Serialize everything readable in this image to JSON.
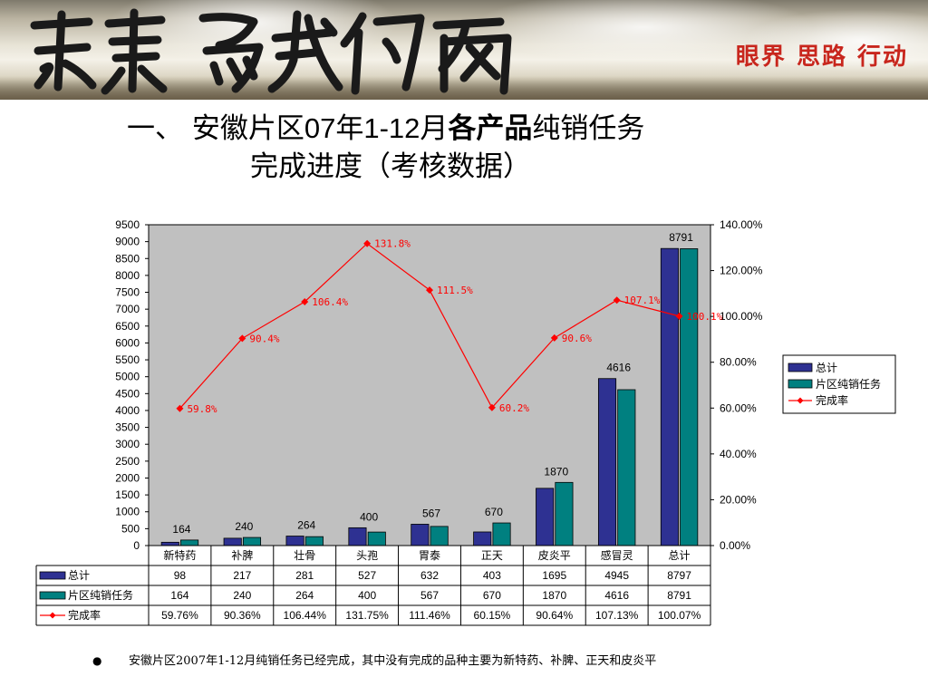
{
  "header": {
    "calligraphy": "未来属我们所来",
    "slogan": "眼界  思路  行动"
  },
  "title": {
    "line1_prefix": "一、 安徽片区",
    "line1_year": "07",
    "line1_year_unit": "年",
    "line1_range": "1-12",
    "line1_month": "月",
    "line1_bold": "各产品",
    "line1_suffix": "纯销任务",
    "line2": "完成进度（考核数据）"
  },
  "colors": {
    "series_total": "#2e3192",
    "series_task": "#008080",
    "rate_line": "#ff0000",
    "plot_bg": "#c0c0c0"
  },
  "chart_data": {
    "type": "bar",
    "categories": [
      "新特药",
      "补脾",
      "壮骨",
      "头孢",
      "胃泰",
      "正天",
      "皮炎平",
      "感冒灵",
      "总计"
    ],
    "series": [
      {
        "name": "总计",
        "values": [
          98,
          217,
          281,
          527,
          632,
          403,
          1695,
          4945,
          8797
        ]
      },
      {
        "name": "片区纯销任务",
        "values": [
          164,
          240,
          264,
          400,
          567,
          670,
          1870,
          4616,
          8791
        ]
      }
    ],
    "line_series": {
      "name": "完成率",
      "values": [
        59.8,
        90.4,
        106.4,
        131.8,
        111.5,
        60.2,
        90.6,
        107.1,
        100.1
      ],
      "labels": [
        "59.8%",
        "90.4%",
        "106.4%",
        "131.8%",
        "111.5%",
        "60.2%",
        "90.6%",
        "107.1%",
        "100.1%"
      ],
      "axis": "secondary"
    },
    "bar_labels": [
      "164",
      "240",
      "264",
      "400",
      "567",
      "670",
      "1870",
      "4616",
      "8791"
    ],
    "yaxis_left": {
      "ylim": [
        0,
        9500
      ],
      "ticks": [
        "0",
        "500",
        "1000",
        "1500",
        "2000",
        "2500",
        "3000",
        "3500",
        "4000",
        "4500",
        "5000",
        "5500",
        "6000",
        "6500",
        "7000",
        "7500",
        "8000",
        "8500",
        "9000",
        "9500"
      ]
    },
    "yaxis_right": {
      "ylim": [
        0,
        140
      ],
      "ticks": [
        "0.00%",
        "20.00%",
        "40.00%",
        "60.00%",
        "80.00%",
        "100.00%",
        "120.00%",
        "140.00%"
      ]
    },
    "legend": {
      "placement": "right",
      "entries": [
        "总计",
        "片区纯销任务",
        "完成率"
      ]
    },
    "data_table": {
      "rows": [
        {
          "label": "总计",
          "cells": [
            "98",
            "217",
            "281",
            "527",
            "632",
            "403",
            "1695",
            "4945",
            "8797"
          ]
        },
        {
          "label": "片区纯销任务",
          "cells": [
            "164",
            "240",
            "264",
            "400",
            "567",
            "670",
            "1870",
            "4616",
            "8791"
          ]
        },
        {
          "label": "完成率",
          "cells": [
            "59.76%",
            "90.36%",
            "106.44%",
            "131.75%",
            "111.46%",
            "60.15%",
            "90.64%",
            "107.13%",
            "100.07%"
          ]
        }
      ]
    },
    "grid": false
  },
  "note": {
    "bullet": "●",
    "text": "安徽片区2007年1-12月纯销任务已经完成，其中没有完成的品种主要为新特药、补脾、正天和皮炎平"
  }
}
